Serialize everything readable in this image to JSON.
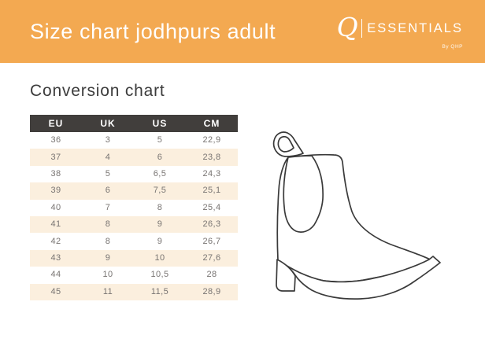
{
  "banner": {
    "title": "Size chart jodhpurs adult",
    "bg_color": "#F3A951",
    "logo": {
      "q": "Q",
      "name": "ESSENTIALS",
      "sub": "By QHP"
    }
  },
  "section": {
    "heading": "Conversion chart"
  },
  "table": {
    "headers": [
      "EU",
      "UK",
      "US",
      "CM"
    ],
    "rows": [
      [
        "36",
        "3",
        "5",
        "22,9"
      ],
      [
        "37",
        "4",
        "6",
        "23,8"
      ],
      [
        "38",
        "5",
        "6,5",
        "24,3"
      ],
      [
        "39",
        "6",
        "7,5",
        "25,1"
      ],
      [
        "40",
        "7",
        "8",
        "25,4"
      ],
      [
        "41",
        "8",
        "9",
        "26,3"
      ],
      [
        "42",
        "8",
        "9",
        "26,7"
      ],
      [
        "43",
        "9",
        "10",
        "27,6"
      ],
      [
        "44",
        "10",
        "10,5",
        "28"
      ],
      [
        "45",
        "11",
        "11,5",
        "28,9"
      ]
    ],
    "header_bg": "#413E3C",
    "header_text_color": "#FFFFFF",
    "row_alt_bg": "#FBEFDE",
    "row_text_color": "#787472"
  },
  "illustration": {
    "name": "jodhpur-boot-line-drawing",
    "stroke_color": "#3A3A3A"
  }
}
